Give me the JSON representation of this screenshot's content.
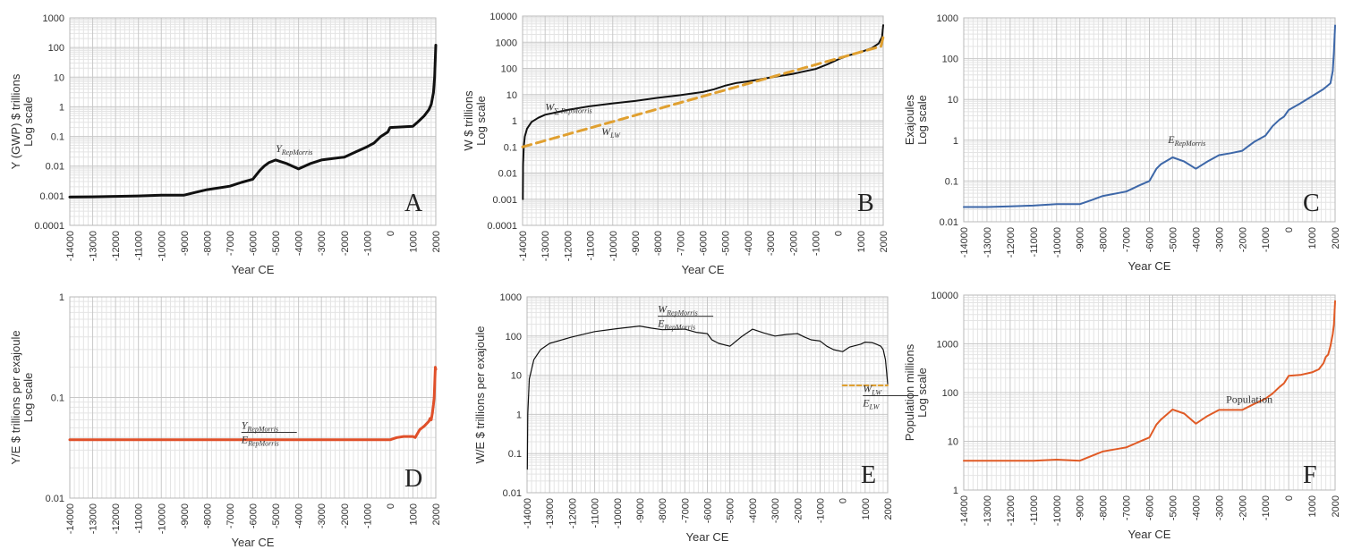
{
  "chart_data": [
    {
      "id": "A",
      "type": "line",
      "panel_label": "A",
      "ylabel": [
        "Y  (GWP) $ trillions",
        "Log scale"
      ],
      "xlabel": "Year CE",
      "yscale": "log",
      "ylim": [
        0.0001,
        1000
      ],
      "xlim": [
        -14000,
        2000
      ],
      "x_ticks": [
        -14000,
        -13000,
        -12000,
        -11000,
        -10000,
        -9000,
        -8000,
        -7000,
        -6000,
        -5000,
        -4000,
        -3000,
        -2000,
        -1000,
        0,
        1000,
        2000
      ],
      "y_ticks": [
        "0.0001",
        "0.001",
        "0.01",
        "0.1",
        "1",
        "10",
        "100",
        "1000"
      ],
      "annotations": [
        {
          "text": "Y",
          "sub": "RepMorris",
          "x": -5000,
          "y": 0.03
        }
      ],
      "series": [
        {
          "name": "Y RepMorris",
          "color": "#111111",
          "width": 3,
          "x": [
            -14000,
            -13000,
            -12000,
            -11000,
            -10000,
            -9000,
            -8500,
            -8000,
            -7000,
            -6500,
            -6000,
            -5700,
            -5500,
            -5300,
            -5000,
            -4500,
            -4000,
            -3500,
            -3000,
            -2500,
            -2000,
            -1500,
            -1000,
            -700,
            -400,
            -100,
            0,
            1000,
            1200,
            1500,
            1700,
            1800,
            1900,
            1950,
            2000
          ],
          "values": [
            0.0009,
            0.00092,
            0.00095,
            0.00098,
            0.00105,
            0.00105,
            0.0013,
            0.0016,
            0.0021,
            0.0028,
            0.0036,
            0.007,
            0.01,
            0.013,
            0.016,
            0.012,
            0.008,
            0.012,
            0.016,
            0.018,
            0.02,
            0.03,
            0.045,
            0.06,
            0.1,
            0.14,
            0.2,
            0.22,
            0.3,
            0.5,
            0.8,
            1.2,
            3,
            10,
            120
          ]
        }
      ]
    },
    {
      "id": "B",
      "type": "line",
      "panel_label": "B",
      "ylabel": [
        "W $ trillions",
        "Log scale"
      ],
      "xlabel": "Year CE",
      "yscale": "log",
      "ylim": [
        0.0001,
        10000
      ],
      "xlim": [
        -14000,
        2000
      ],
      "x_ticks": [
        -14000,
        -13000,
        -12000,
        -11000,
        -10000,
        -9000,
        -8000,
        -7000,
        -6000,
        -5000,
        -4000,
        -3000,
        -2000,
        -1000,
        0,
        1000,
        2000
      ],
      "y_ticks": [
        "0.0001",
        "0.001",
        "0.01",
        "0.1",
        "1",
        "10",
        "100",
        "1000",
        "10000"
      ],
      "annotations": [
        {
          "text": "W",
          "sub": "∑ RepMorris",
          "x": -13000,
          "y": 2.5
        },
        {
          "text": "W",
          "sub": "LW",
          "x": -10500,
          "y": 0.28
        }
      ],
      "series": [
        {
          "name": "W Σ RepMorris",
          "color": "#111111",
          "width": 2,
          "x": [
            -13990,
            -13980,
            -13950,
            -13900,
            -13800,
            -13600,
            -13300,
            -13000,
            -12000,
            -11000,
            -10000,
            -9000,
            -8000,
            -7000,
            -6000,
            -5500,
            -5000,
            -4500,
            -4000,
            -3000,
            -2000,
            -1500,
            -1000,
            -500,
            0,
            500,
            1000,
            1500,
            1800,
            1950,
            2000
          ],
          "values": [
            0.001,
            0.02,
            0.1,
            0.25,
            0.5,
            0.9,
            1.3,
            1.7,
            2.6,
            3.6,
            4.6,
            5.7,
            7.5,
            9.5,
            12.5,
            16,
            22,
            28,
            32,
            45,
            62,
            77,
            95,
            140,
            220,
            320,
            420,
            600,
            900,
            1600,
            4500
          ]
        },
        {
          "name": "W LW",
          "color": "#e0a030",
          "width": 3,
          "dash": "10,6",
          "x": [
            -14000,
            1900,
            2000
          ],
          "values": [
            0.1,
            700,
            1600
          ]
        }
      ]
    },
    {
      "id": "C",
      "type": "line",
      "panel_label": "C",
      "ylabel": [
        "Exajoules",
        "Log scale"
      ],
      "xlabel": "Year CE",
      "yscale": "log",
      "ylim": [
        0.01,
        1000
      ],
      "xlim": [
        -14000,
        2000
      ],
      "x_ticks": [
        -14000,
        -13000,
        -12000,
        -11000,
        -10000,
        -9000,
        -8000,
        -7000,
        -6000,
        -5000,
        -4000,
        -3000,
        -2000,
        -1000,
        0,
        1000,
        2000
      ],
      "y_ticks": [
        "0.01",
        "0.1",
        "1",
        "10",
        "100",
        "1000"
      ],
      "annotations": [
        {
          "text": "E",
          "sub": "RepMorris",
          "x": -5200,
          "y": 0.85
        }
      ],
      "series": [
        {
          "name": "E RepMorris",
          "color": "#3d67a8",
          "width": 2,
          "x": [
            -14000,
            -13000,
            -12000,
            -11000,
            -10000,
            -9000,
            -8500,
            -8000,
            -7000,
            -6500,
            -6000,
            -5700,
            -5500,
            -5000,
            -4500,
            -4000,
            -3500,
            -3000,
            -2500,
            -2000,
            -1500,
            -1000,
            -700,
            -400,
            -200,
            0,
            500,
            1000,
            1500,
            1800,
            1900,
            1950,
            2000
          ],
          "values": [
            0.023,
            0.023,
            0.024,
            0.025,
            0.027,
            0.027,
            0.034,
            0.043,
            0.055,
            0.075,
            0.1,
            0.2,
            0.26,
            0.38,
            0.3,
            0.2,
            0.3,
            0.43,
            0.48,
            0.55,
            0.9,
            1.3,
            2.2,
            3.2,
            3.8,
            5.5,
            8,
            12,
            18,
            25,
            50,
            150,
            650
          ]
        }
      ]
    },
    {
      "id": "D",
      "type": "line",
      "panel_label": "D",
      "ylabel": [
        "Y/E $ trillions per exajoule",
        "Log scale"
      ],
      "xlabel": "Year CE",
      "yscale": "log",
      "ylim": [
        0.01,
        1
      ],
      "xlim": [
        -14000,
        2000
      ],
      "x_ticks": [
        -14000,
        -13000,
        -12000,
        -11000,
        -10000,
        -9000,
        -8000,
        -7000,
        -6000,
        -5000,
        -4000,
        -3000,
        -2000,
        -1000,
        0,
        1000,
        2000
      ],
      "y_ticks": [
        "0.01",
        "0.1",
        "1"
      ],
      "annotations": [
        {
          "frac_num": "Y",
          "num_sub": "RepMorris",
          "frac_den": "E",
          "den_sub": "RepMorris",
          "x": -6500,
          "y": 0.045
        }
      ],
      "series": [
        {
          "name": "Y/E",
          "color": "#e0502a",
          "width": 3,
          "x": [
            -14000,
            -1000,
            0,
            300,
            600,
            1000,
            1100,
            1300,
            1500,
            1700,
            1750,
            1800,
            1850,
            1900,
            1930,
            1950,
            1980,
            2000
          ],
          "values": [
            0.038,
            0.038,
            0.038,
            0.04,
            0.041,
            0.041,
            0.04,
            0.048,
            0.052,
            0.058,
            0.062,
            0.06,
            0.07,
            0.085,
            0.1,
            0.13,
            0.2,
            0.19
          ]
        }
      ]
    },
    {
      "id": "E",
      "type": "line",
      "panel_label": "E",
      "ylabel": [
        "W/E $ trillions per exajoule"
      ],
      "xlabel": "Year CE",
      "yscale": "log",
      "ylim": [
        0.01,
        1000
      ],
      "xlim": [
        -14000,
        2000
      ],
      "x_ticks": [
        -14000,
        -13000,
        -12000,
        -11000,
        -10000,
        -9000,
        -8000,
        -7000,
        -6000,
        -5000,
        -4000,
        -3000,
        -2000,
        -1000,
        0,
        1000,
        2000
      ],
      "y_ticks": [
        "0.01",
        "0.1",
        "1",
        "10",
        "100",
        "1000"
      ],
      "annotations": [
        {
          "frac_num": "W",
          "num_sub": "RepMorris",
          "frac_den": "E",
          "den_sub": "RepMorris",
          "x": -8200,
          "y": 320
        },
        {
          "frac_num": "W",
          "num_sub": "LW",
          "frac_den": "E",
          "den_sub": "LW",
          "x": 900,
          "y": 3
        }
      ],
      "series": [
        {
          "name": "W/E RepMorris",
          "color": "#111111",
          "width": 1.2,
          "x": [
            -13990,
            -13970,
            -13900,
            -13700,
            -13400,
            -13000,
            -12000,
            -11000,
            -10000,
            -9000,
            -8500,
            -8000,
            -7000,
            -6500,
            -6000,
            -5800,
            -5500,
            -5000,
            -4500,
            -4000,
            -3500,
            -3000,
            -2500,
            -2000,
            -1700,
            -1400,
            -1000,
            -700,
            -400,
            0,
            300,
            800,
            1000,
            1300,
            1500,
            1700,
            1800,
            1900,
            2000
          ],
          "values": [
            0.04,
            1,
            8,
            25,
            45,
            65,
            95,
            130,
            155,
            180,
            160,
            145,
            150,
            125,
            115,
            80,
            65,
            55,
            95,
            150,
            120,
            100,
            110,
            115,
            95,
            80,
            75,
            55,
            45,
            40,
            52,
            62,
            70,
            68,
            62,
            55,
            45,
            25,
            6
          ]
        },
        {
          "name": "W/E LW",
          "color": "#e0a030",
          "width": 2,
          "dash": "5,3",
          "x": [
            0,
            2000
          ],
          "values": [
            5.5,
            5.5
          ]
        }
      ]
    },
    {
      "id": "F",
      "type": "line",
      "panel_label": "F",
      "ylabel": [
        "Population millions",
        "Log scale"
      ],
      "xlabel": "Year CE",
      "yscale": "log",
      "ylim": [
        1,
        10000
      ],
      "xlim": [
        -14000,
        2000
      ],
      "x_ticks": [
        -14000,
        -13000,
        -12000,
        -11000,
        -10000,
        -9000,
        -8000,
        -7000,
        -6000,
        -5000,
        -4000,
        -3000,
        -2000,
        -1000,
        0,
        1000,
        2000
      ],
      "y_ticks": [
        "1",
        "10",
        "100",
        "1000",
        "10000"
      ],
      "annotations": [
        {
          "text": "Population",
          "x": -2700,
          "y": 62
        }
      ],
      "series": [
        {
          "name": "Population",
          "color": "#e05a25",
          "width": 2,
          "x": [
            -14000,
            -13000,
            -12000,
            -11000,
            -10000,
            -9000,
            -8500,
            -8000,
            -7000,
            -6500,
            -6000,
            -5700,
            -5500,
            -5000,
            -4500,
            -4000,
            -3500,
            -3000,
            -2500,
            -2000,
            -1500,
            -1000,
            -700,
            -400,
            -200,
            0,
            500,
            1000,
            1300,
            1500,
            1600,
            1700,
            1800,
            1850,
            1900,
            1950,
            2000
          ],
          "values": [
            4,
            4,
            4,
            4,
            4.2,
            4,
            5,
            6.2,
            7.5,
            9.5,
            12,
            22,
            28,
            45,
            37,
            23,
            33,
            44,
            44,
            44,
            58,
            75,
            95,
            130,
            155,
            220,
            230,
            260,
            300,
            400,
            540,
            600,
            900,
            1200,
            1600,
            2500,
            7500
          ]
        }
      ]
    }
  ]
}
